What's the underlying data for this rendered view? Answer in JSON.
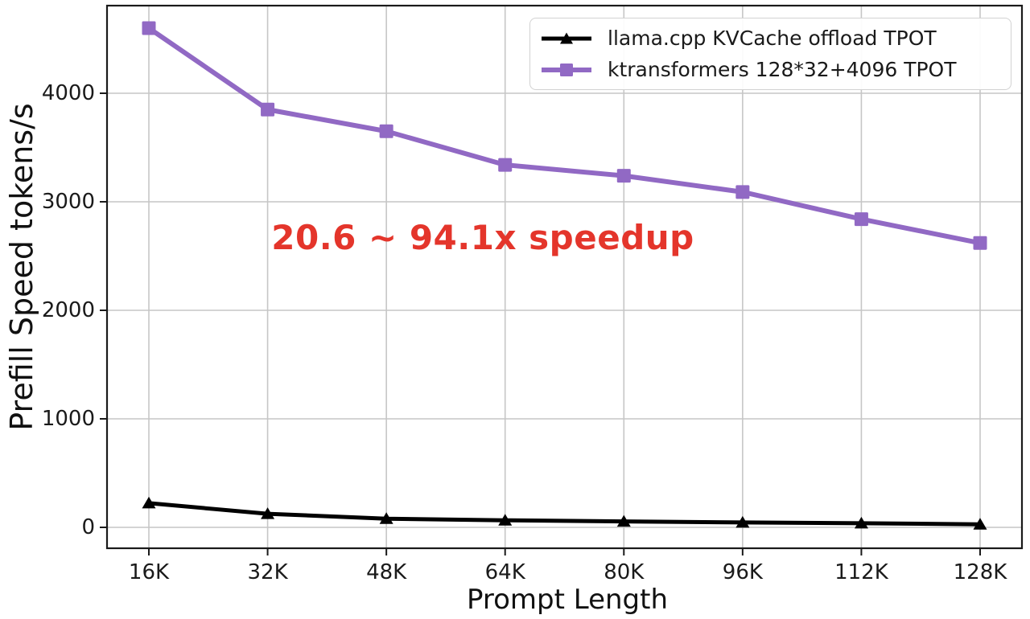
{
  "chart_data": {
    "type": "line",
    "title": "",
    "xlabel": "Prompt Length",
    "ylabel": "Prefill Speed tokens/s",
    "categories": [
      "16K",
      "32K",
      "48K",
      "64K",
      "80K",
      "96K",
      "112K",
      "128K"
    ],
    "yticks": [
      "0",
      "1000",
      "2000",
      "3000",
      "4000"
    ],
    "ytick_values": [
      0,
      1000,
      2000,
      3000,
      4000
    ],
    "ylim": [
      -190,
      4810
    ],
    "grid": true,
    "legend_position": "upper right",
    "series": [
      {
        "name": "llama.cpp KVCache offload TPOT",
        "color": "#000000",
        "marker": "triangle",
        "values": [
          223,
          125,
          80,
          65,
          55,
          45,
          38,
          28
        ]
      },
      {
        "name": "ktransformers 128*32+4096 TPOT",
        "color": "#9169c4",
        "marker": "square",
        "values": [
          4600,
          3850,
          3650,
          3340,
          3240,
          3090,
          2840,
          2620
        ]
      }
    ],
    "annotation": {
      "text": "20.6 ~ 94.1x speedup",
      "color": "#e4352b"
    }
  }
}
